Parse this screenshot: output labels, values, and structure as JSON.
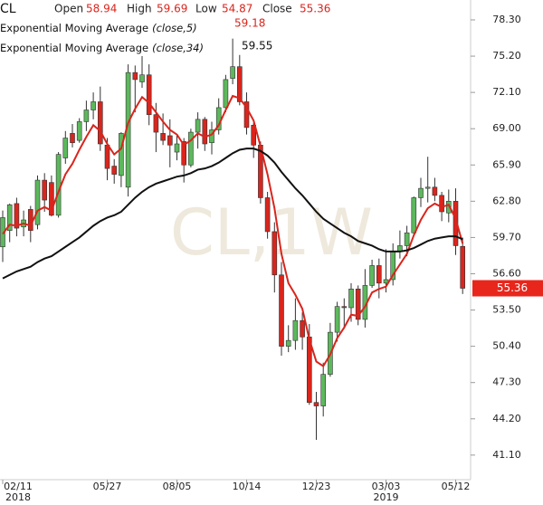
{
  "chart_data": {
    "type": "candlestick",
    "symbol": "CL",
    "watermark": "CL,1W",
    "header": [
      {
        "label": "Open",
        "value": 58.94
      },
      {
        "label": "High",
        "value": 59.69
      },
      {
        "label": "Low",
        "value": 54.87
      },
      {
        "label": "Close",
        "value": 55.36
      }
    ],
    "categories": [
      "02/11\n2018",
      null,
      null,
      null,
      null,
      null,
      null,
      null,
      null,
      null,
      null,
      null,
      null,
      null,
      null,
      "05/27",
      null,
      null,
      null,
      null,
      null,
      null,
      null,
      null,
      null,
      "08/05",
      null,
      null,
      null,
      null,
      null,
      null,
      null,
      null,
      null,
      "10/14",
      null,
      null,
      null,
      null,
      null,
      null,
      null,
      null,
      null,
      "12/23",
      null,
      null,
      null,
      null,
      null,
      null,
      null,
      null,
      null,
      "03/03\n2019",
      null,
      null,
      null,
      null,
      null,
      null,
      null,
      null,
      null,
      "05/12",
      null
    ],
    "open": [
      58.9,
      60.3,
      62.6,
      60.6,
      62.1,
      60.8,
      64.6,
      64.4,
      61.6,
      66.5,
      68.6,
      68.0,
      69.6,
      70.6,
      71.3,
      67.6,
      65.8,
      65.0,
      64.0,
      73.8,
      73.0,
      73.6,
      70.2,
      68.6,
      68.4,
      67.0,
      67.9,
      65.9,
      68.7,
      69.8,
      67.8,
      68.9,
      70.8,
      73.3,
      74.3,
      71.3,
      69.3,
      67.6,
      63.1,
      60.2,
      56.5,
      50.4,
      50.9,
      52.6,
      51.2,
      45.6,
      45.3,
      48.0,
      51.6,
      53.8,
      53.7,
      55.3,
      52.7,
      55.6,
      57.3,
      55.8,
      56.1,
      58.5,
      59.0,
      60.1,
      63.1,
      63.9,
      64.0,
      63.3,
      61.8,
      62.8,
      58.94
    ],
    "high": [
      62.0,
      62.6,
      63.1,
      62.0,
      62.4,
      65.0,
      65.2,
      65.0,
      67.0,
      68.8,
      69.4,
      69.9,
      71.4,
      72.1,
      72.6,
      68.2,
      66.4,
      68.7,
      74.5,
      74.4,
      75.2,
      74.5,
      71.2,
      70.3,
      69.8,
      68.5,
      68.2,
      69.0,
      70.4,
      70.0,
      69.6,
      71.6,
      73.6,
      76.7,
      75.3,
      72.1,
      69.5,
      67.9,
      63.6,
      61.0,
      57.6,
      52.2,
      54.5,
      53.3,
      52.3,
      46.5,
      49.0,
      52.4,
      54.2,
      54.5,
      55.8,
      55.6,
      57.0,
      57.8,
      57.9,
      58.7,
      59.2,
      60.3,
      60.7,
      63.2,
      64.8,
      66.6,
      64.8,
      63.6,
      63.8,
      63.9,
      59.69
    ],
    "low": [
      57.6,
      59.3,
      59.8,
      59.8,
      59.3,
      60.4,
      61.9,
      61.5,
      61.4,
      66.0,
      67.4,
      67.8,
      68.8,
      69.8,
      67.1,
      64.6,
      64.3,
      64.0,
      63.2,
      70.4,
      72.5,
      69.3,
      67.0,
      67.6,
      65.7,
      66.3,
      64.4,
      65.7,
      67.3,
      67.1,
      66.8,
      68.5,
      70.4,
      72.8,
      71.0,
      68.5,
      66.5,
      62.6,
      59.6,
      55.0,
      49.6,
      49.9,
      50.1,
      50.1,
      45.4,
      42.4,
      44.4,
      47.8,
      50.8,
      51.9,
      52.5,
      52.2,
      52.0,
      55.4,
      54.5,
      55.0,
      55.6,
      57.9,
      58.1,
      59.8,
      62.3,
      62.7,
      62.8,
      61.1,
      61.0,
      58.2,
      54.87
    ],
    "close": [
      61.4,
      62.5,
      60.5,
      61.2,
      60.3,
      64.6,
      62.9,
      61.6,
      66.8,
      68.2,
      67.8,
      69.6,
      70.6,
      71.3,
      67.7,
      65.6,
      65.1,
      68.6,
      73.8,
      73.2,
      73.6,
      70.2,
      68.7,
      68.0,
      67.6,
      67.7,
      65.9,
      68.7,
      69.8,
      67.7,
      68.9,
      70.8,
      73.2,
      74.3,
      71.3,
      69.1,
      67.6,
      63.1,
      60.2,
      56.5,
      50.4,
      50.9,
      52.6,
      51.2,
      45.6,
      45.3,
      48.0,
      51.6,
      53.8,
      53.7,
      55.3,
      52.7,
      55.6,
      57.3,
      55.8,
      56.1,
      58.5,
      59.0,
      60.1,
      63.1,
      63.9,
      64.0,
      63.3,
      61.9,
      62.8,
      59.0,
      55.36
    ],
    "up_color": "#5cb85c",
    "down_color": "#d9251d",
    "series": [
      {
        "name": "Exponential Moving Average",
        "args": "(close,5)",
        "color": "#d9251d",
        "last_value": 59.18,
        "values": [
          60.0,
          60.8,
          60.7,
          60.9,
          60.7,
          62.0,
          62.3,
          62.0,
          63.6,
          65.1,
          66.0,
          67.2,
          68.3,
          69.3,
          68.8,
          67.7,
          66.8,
          67.3,
          69.5,
          70.7,
          71.7,
          71.2,
          70.4,
          69.6,
          68.9,
          68.5,
          67.6,
          68.0,
          68.6,
          68.3,
          68.5,
          69.3,
          70.6,
          71.8,
          71.6,
          70.8,
          69.7,
          67.5,
          65.1,
          62.2,
          58.3,
          55.8,
          54.8,
          53.6,
          51.0,
          49.1,
          48.7,
          49.7,
          51.1,
          52.0,
          53.1,
          53.0,
          53.8,
          55.0,
          55.3,
          55.5,
          56.5,
          57.4,
          58.3,
          59.9,
          61.2,
          62.2,
          62.6,
          62.3,
          62.5,
          61.3,
          59.18
        ]
      },
      {
        "name": "Exponential Moving Average",
        "args": "(close,34)",
        "color": "#111111",
        "last_value": 59.55,
        "values": [
          56.2,
          56.5,
          56.8,
          57.0,
          57.2,
          57.6,
          57.9,
          58.1,
          58.5,
          58.9,
          59.3,
          59.7,
          60.2,
          60.7,
          61.1,
          61.4,
          61.6,
          61.9,
          62.5,
          63.1,
          63.6,
          64.0,
          64.3,
          64.5,
          64.7,
          64.9,
          65.0,
          65.2,
          65.5,
          65.6,
          65.8,
          66.1,
          66.5,
          66.9,
          67.2,
          67.3,
          67.3,
          67.1,
          66.7,
          66.1,
          65.3,
          64.6,
          63.9,
          63.3,
          62.6,
          61.9,
          61.3,
          60.9,
          60.5,
          60.1,
          59.8,
          59.4,
          59.2,
          59.0,
          58.7,
          58.5,
          58.5,
          58.5,
          58.6,
          58.8,
          59.1,
          59.4,
          59.6,
          59.7,
          59.8,
          59.8,
          59.55
        ]
      }
    ],
    "ylim": [
      39,
      80
    ],
    "yticks": [
      {
        "value": 41.1,
        "label": "41.10"
      },
      {
        "value": 44.2,
        "label": "44.20"
      },
      {
        "value": 47.3,
        "label": "47.30"
      },
      {
        "value": 50.4,
        "label": "50.40"
      },
      {
        "value": 53.5,
        "label": "53.50"
      },
      {
        "value": 56.6,
        "label": "56.60"
      },
      {
        "value": 59.7,
        "label": "59.70"
      },
      {
        "value": 62.8,
        "label": "62.80"
      },
      {
        "value": 65.9,
        "label": "65.90"
      },
      {
        "value": 69.0,
        "label": "69.00"
      },
      {
        "value": 72.1,
        "label": "72.10"
      },
      {
        "value": 75.2,
        "label": "75.20"
      },
      {
        "value": 78.3,
        "label": "78.30"
      }
    ]
  }
}
